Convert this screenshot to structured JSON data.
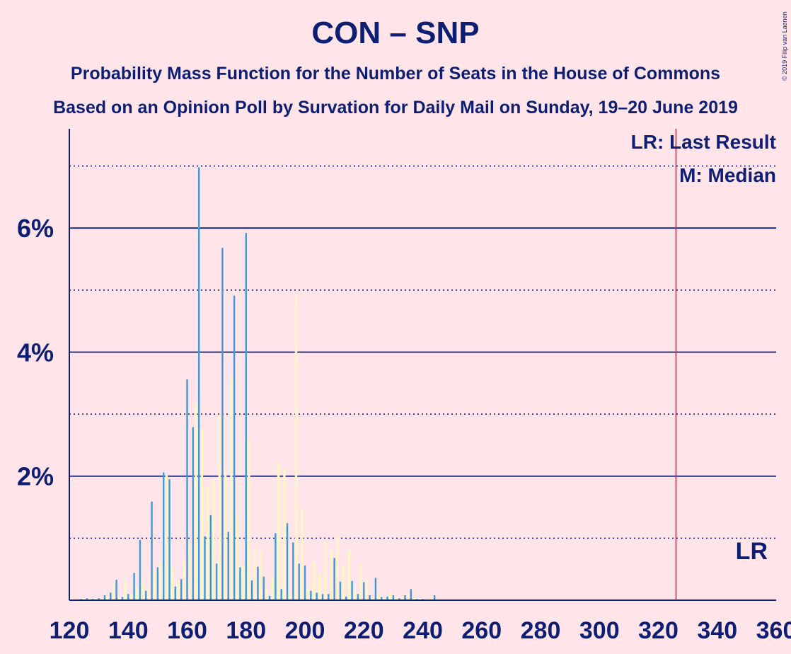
{
  "header": {
    "title": "CON – SNP",
    "subtitle1": "Probability Mass Function for the Number of Seats in the House of Commons",
    "subtitle2": "Based on an Opinion Poll by Survation for Daily Mail on Sunday, 19–20 June 2019",
    "copyright": "© 2019 Filip van Laenen"
  },
  "legend": {
    "lr": "LR: Last Result",
    "m": "M: Median",
    "lr_marker": "LR"
  },
  "colors": {
    "background": "#ffe5ea",
    "axis": "#0e1f73",
    "bar_primary": "#3d9ad9",
    "bar_secondary": "#fdf4c8",
    "last_result_line": "#cc2a4a"
  },
  "chart_data": {
    "type": "bar",
    "xlabel": "",
    "ylabel": "",
    "xlim": [
      120,
      360
    ],
    "ylim": [
      0,
      7.6
    ],
    "x_ticks": [
      120,
      140,
      160,
      180,
      200,
      220,
      240,
      260,
      280,
      300,
      320,
      340,
      360
    ],
    "y_tick_labels": [
      {
        "value": 2,
        "label": "2%"
      },
      {
        "value": 4,
        "label": "4%"
      },
      {
        "value": 6,
        "label": "6%"
      }
    ],
    "solid_gridlines": [
      2,
      4,
      6
    ],
    "dotted_gridlines": [
      1,
      3,
      5,
      7
    ],
    "last_result": 326,
    "legend_position": "top-right",
    "series": [
      {
        "color_key": "bar_primary",
        "points": [
          [
            124,
            0.02
          ],
          [
            126,
            0.03
          ],
          [
            128,
            0.02
          ],
          [
            130,
            0.03
          ],
          [
            132,
            0.08
          ],
          [
            134,
            0.12
          ],
          [
            136,
            0.33
          ],
          [
            138,
            0.05
          ],
          [
            140,
            0.1
          ],
          [
            142,
            0.44
          ],
          [
            144,
            0.97
          ],
          [
            146,
            0.15
          ],
          [
            148,
            1.59
          ],
          [
            150,
            0.53
          ],
          [
            152,
            2.06
          ],
          [
            154,
            1.95
          ],
          [
            156,
            0.22
          ],
          [
            158,
            0.34
          ],
          [
            160,
            3.56
          ],
          [
            162,
            2.79
          ],
          [
            164,
            6.98
          ],
          [
            166,
            1.03
          ],
          [
            168,
            1.37
          ],
          [
            170,
            0.59
          ],
          [
            172,
            5.68
          ],
          [
            174,
            1.1
          ],
          [
            176,
            4.91
          ],
          [
            178,
            0.53
          ],
          [
            180,
            5.92
          ],
          [
            182,
            0.32
          ],
          [
            184,
            0.54
          ],
          [
            186,
            0.38
          ],
          [
            188,
            0.07
          ],
          [
            190,
            1.08
          ],
          [
            192,
            0.18
          ],
          [
            194,
            1.24
          ],
          [
            196,
            0.93
          ],
          [
            198,
            0.59
          ],
          [
            200,
            0.56
          ],
          [
            202,
            0.15
          ],
          [
            204,
            0.12
          ],
          [
            206,
            0.1
          ],
          [
            208,
            0.1
          ],
          [
            210,
            0.68
          ],
          [
            212,
            0.3
          ],
          [
            214,
            0.06
          ],
          [
            216,
            0.31
          ],
          [
            218,
            0.1
          ],
          [
            220,
            0.29
          ],
          [
            222,
            0.08
          ],
          [
            224,
            0.36
          ],
          [
            226,
            0.05
          ],
          [
            228,
            0.06
          ],
          [
            230,
            0.08
          ],
          [
            232,
            0.03
          ],
          [
            234,
            0.08
          ],
          [
            236,
            0.18
          ],
          [
            238,
            0.02
          ],
          [
            240,
            0.02
          ],
          [
            242,
            0.01
          ],
          [
            244,
            0.08
          ],
          [
            246,
            0.01
          ]
        ]
      },
      {
        "color_key": "bar_secondary",
        "points": [
          [
            125,
            0.02
          ],
          [
            127,
            0.02
          ],
          [
            129,
            0.02
          ],
          [
            131,
            0.04
          ],
          [
            133,
            0.06
          ],
          [
            135,
            0.28
          ],
          [
            137,
            0.06
          ],
          [
            139,
            0.32
          ],
          [
            141,
            0.1
          ],
          [
            143,
            0.22
          ],
          [
            145,
            0.3
          ],
          [
            147,
            0.18
          ],
          [
            149,
            0.48
          ],
          [
            151,
            0.62
          ],
          [
            153,
            2.02
          ],
          [
            155,
            0.53
          ],
          [
            157,
            0.3
          ],
          [
            159,
            0.63
          ],
          [
            161,
            0.9
          ],
          [
            163,
            3.17
          ],
          [
            165,
            2.75
          ],
          [
            167,
            1.83
          ],
          [
            169,
            1.95
          ],
          [
            171,
            2.97
          ],
          [
            173,
            2.13
          ],
          [
            175,
            3.6
          ],
          [
            177,
            1.38
          ],
          [
            179,
            0.55
          ],
          [
            181,
            2.6
          ],
          [
            183,
            0.84
          ],
          [
            185,
            0.8
          ],
          [
            187,
            0.2
          ],
          [
            189,
            0.37
          ],
          [
            191,
            2.22
          ],
          [
            193,
            2.12
          ],
          [
            195,
            0.12
          ],
          [
            197,
            4.92
          ],
          [
            199,
            1.47
          ],
          [
            201,
            0.2
          ],
          [
            203,
            0.63
          ],
          [
            205,
            0.43
          ],
          [
            207,
            0.95
          ],
          [
            209,
            0.8
          ],
          [
            211,
            1.06
          ],
          [
            213,
            0.57
          ],
          [
            215,
            0.8
          ],
          [
            217,
            0.15
          ],
          [
            219,
            0.59
          ],
          [
            221,
            0.35
          ],
          [
            223,
            0.04
          ],
          [
            225,
            0.1
          ],
          [
            227,
            0.04
          ],
          [
            229,
            0.13
          ],
          [
            231,
            0.05
          ],
          [
            233,
            0.06
          ],
          [
            235,
            0.1
          ],
          [
            237,
            0.03
          ],
          [
            239,
            0.02
          ],
          [
            241,
            0.01
          ],
          [
            243,
            0.02
          ]
        ]
      }
    ]
  }
}
